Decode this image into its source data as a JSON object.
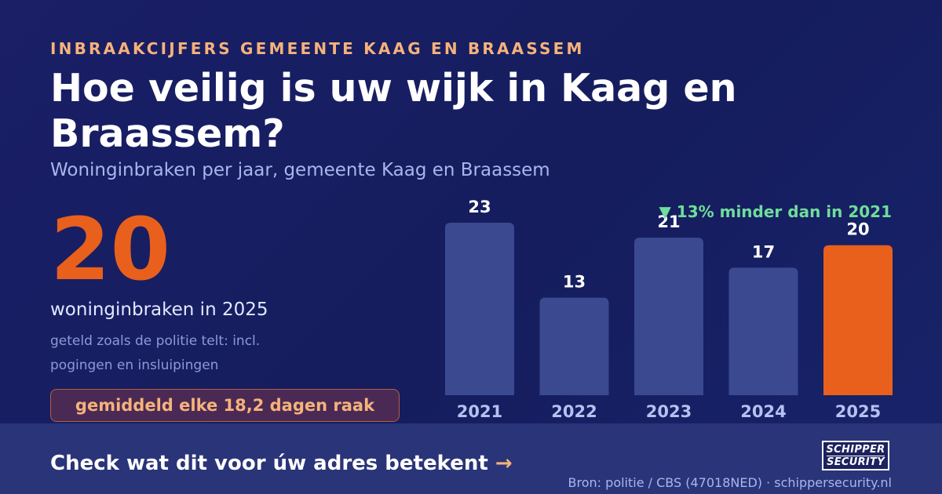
{
  "header": {
    "eyebrow": "INBRAAKCIJFERS GEMEENTE KAAG EN BRAASSEM",
    "title": "Hoe veilig is uw wijk in Kaag en Braassem?",
    "subtitle": "Woninginbraken per jaar, gemeente Kaag en Braassem"
  },
  "highlight": {
    "number": "20",
    "label": "woninginbraken in 2025",
    "note": "geteld zoals de politie telt: incl. pogingen en insluipingen",
    "pill": "gemiddeld elke 18,2 dagen raak"
  },
  "chart_data": {
    "type": "bar",
    "categories": [
      "2021",
      "2022",
      "2023",
      "2024",
      "2025"
    ],
    "values": [
      23,
      13,
      21,
      17,
      20
    ],
    "highlight_category": "2025",
    "annotation": "▼ 13% minder dan in 2021",
    "ylim": [
      0,
      23
    ],
    "grid": false,
    "colors": {
      "bar": "#3b4990",
      "highlight": "#e8601c",
      "value_label": "#ffffff",
      "tick_label": "#b5c1f0",
      "annotation": "#6fdd9b"
    }
  },
  "footer": {
    "cta": "Check wat dit voor úw adres betekent",
    "cta_arrow": "→",
    "logo_line1": "SCHIPPER",
    "logo_line2": "SECURITY",
    "source": "Bron: politie / CBS (47018NED) · schippersecurity.nl"
  }
}
